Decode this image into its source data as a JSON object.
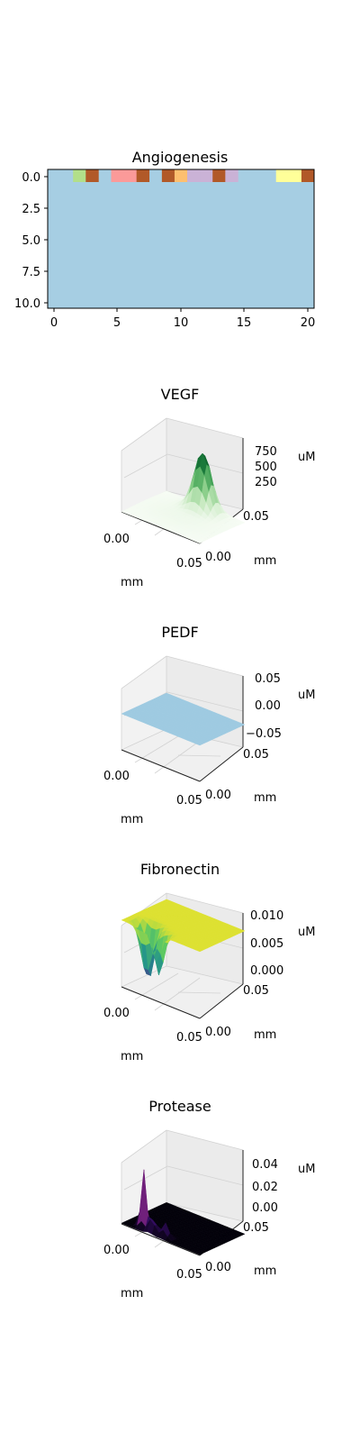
{
  "chart_data": [
    {
      "type": "heatmap",
      "title": "Angiogenesis",
      "x_ticks": [
        "0",
        "5",
        "10",
        "15",
        "20"
      ],
      "y_ticks": [
        "0.0",
        "2.5",
        "5.0",
        "7.5",
        "10.0"
      ],
      "xlim": [
        -0.5,
        20.5
      ],
      "ylim": [
        10.5,
        -0.5
      ],
      "background_color": "#a6cee3",
      "row0_colors": {
        "2": "#b2df8a",
        "3": "#b15928",
        "5": "#fb9a99",
        "6": "#fb9a99",
        "7": "#b15928",
        "9": "#b15928",
        "10": "#fdbf6f",
        "11": "#cab2d6",
        "12": "#cab2d6",
        "13": "#b15928",
        "14": "#cab2d6",
        "18": "#ffff99",
        "19": "#ffff99",
        "20": "#b15928"
      }
    },
    {
      "type": "surface",
      "title": "VEGF",
      "x_ticks": [
        "0.00",
        "0.05"
      ],
      "y_ticks": [
        "0.00",
        "0.05"
      ],
      "z_ticks": [
        "250",
        "500",
        "750"
      ],
      "xlabel": "mm",
      "ylabel": "mm",
      "zlabel": "uM",
      "zlim": [
        0,
        900
      ],
      "colormap": "Greens"
    },
    {
      "type": "surface",
      "title": "PEDF",
      "x_ticks": [
        "0.00",
        "0.05"
      ],
      "y_ticks": [
        "0.00",
        "0.05"
      ],
      "z_ticks": [
        "−0.05",
        "0.00",
        "0.05"
      ],
      "xlabel": "mm",
      "ylabel": "mm",
      "zlabel": "uM",
      "zlim": [
        -0.05,
        0.05
      ],
      "colormap": "Blues"
    },
    {
      "type": "surface",
      "title": "Fibronectin",
      "x_ticks": [
        "0.00",
        "0.05"
      ],
      "y_ticks": [
        "0.00",
        "0.05"
      ],
      "z_ticks": [
        "0.000",
        "0.005",
        "0.010"
      ],
      "xlabel": "mm",
      "ylabel": "mm",
      "zlabel": "uM",
      "zlim": [
        0,
        0.01
      ],
      "colormap": "viridis"
    },
    {
      "type": "surface",
      "title": "Protease",
      "x_ticks": [
        "0.00",
        "0.05"
      ],
      "y_ticks": [
        "0.00",
        "0.05"
      ],
      "z_ticks": [
        "0.00",
        "0.02",
        "0.04"
      ],
      "xlabel": "mm",
      "ylabel": "mm",
      "zlabel": "uM",
      "zlim": [
        0,
        0.045
      ],
      "colormap": "magma"
    }
  ]
}
